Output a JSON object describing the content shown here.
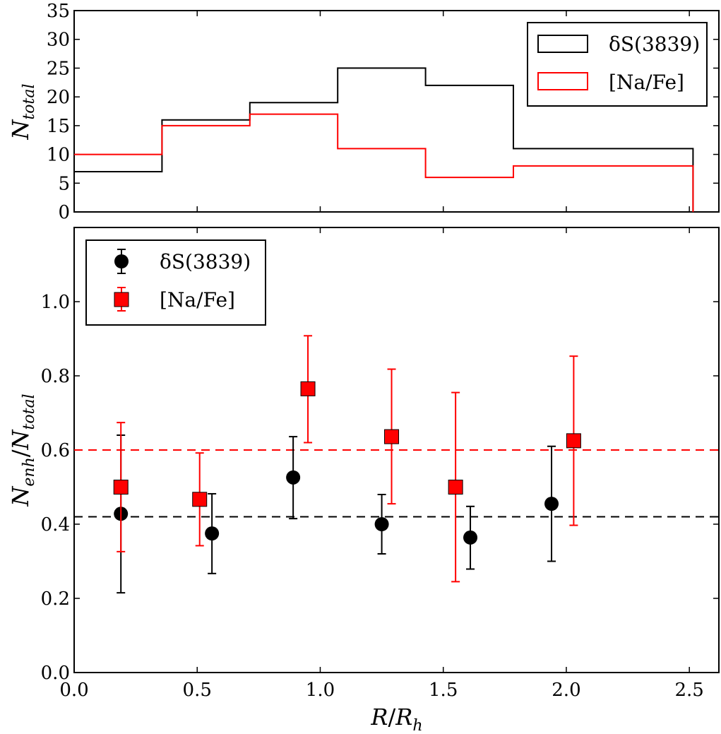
{
  "chart_data": [
    {
      "type": "step-histogram",
      "title": "",
      "ylabel": "N_total",
      "ylabel_parts": {
        "main": "N",
        "sub": "total"
      },
      "xlim": [
        0.0,
        2.62
      ],
      "ylim": [
        0,
        35
      ],
      "yticks": [
        0,
        5,
        10,
        15,
        20,
        25,
        30,
        35
      ],
      "bin_edges": [
        0.0,
        0.357,
        0.714,
        1.071,
        1.428,
        1.785,
        2.515
      ],
      "series": [
        {
          "name": "δS(3839)",
          "color": "#000000",
          "counts": [
            7,
            16,
            19,
            25,
            22,
            11
          ]
        },
        {
          "name": "[Na/Fe]",
          "color": "#ff0000",
          "counts": [
            10,
            15,
            17,
            11,
            6,
            8
          ]
        }
      ],
      "legend": {
        "placement": "top-right",
        "entries": [
          {
            "label": "δS(3839)",
            "color": "#000000"
          },
          {
            "label": "[Na/Fe]",
            "color": "#ff0000"
          }
        ]
      }
    },
    {
      "type": "scatter-errorbar",
      "title": "",
      "xlabel": "R/R_h",
      "xlabel_parts": {
        "main": "R",
        "slash": "/",
        "main2": "R",
        "sub": "h"
      },
      "ylabel": "N_enh/N_total",
      "ylabel_parts": {
        "main": "N",
        "sub1": "enh",
        "slash": "/",
        "main2": "N",
        "sub2": "total"
      },
      "xlim": [
        0.0,
        2.62
      ],
      "ylim": [
        0.0,
        1.2
      ],
      "xticks": [
        "0.0",
        "0.5",
        "1.0",
        "1.5",
        "2.0",
        "2.5"
      ],
      "yticks": [
        "0.0",
        "0.2",
        "0.4",
        "0.6",
        "0.8",
        "1.0"
      ],
      "series": [
        {
          "name": "δS(3839)",
          "marker": "circle",
          "color": "#000000",
          "points": [
            {
              "x": 0.19,
              "y": 0.428,
              "yerr_low": 0.215,
              "yerr_high": 0.64
            },
            {
              "x": 0.56,
              "y": 0.375,
              "yerr_low": 0.267,
              "yerr_high": 0.482
            },
            {
              "x": 0.89,
              "y": 0.526,
              "yerr_low": 0.415,
              "yerr_high": 0.636
            },
            {
              "x": 1.25,
              "y": 0.4,
              "yerr_low": 0.32,
              "yerr_high": 0.48
            },
            {
              "x": 1.61,
              "y": 0.364,
              "yerr_low": 0.279,
              "yerr_high": 0.448
            },
            {
              "x": 1.94,
              "y": 0.455,
              "yerr_low": 0.3,
              "yerr_high": 0.61
            }
          ]
        },
        {
          "name": "[Na/Fe]",
          "marker": "square",
          "color": "#ff0000",
          "points": [
            {
              "x": 0.19,
              "y": 0.5,
              "yerr_low": 0.326,
              "yerr_high": 0.674
            },
            {
              "x": 0.51,
              "y": 0.467,
              "yerr_low": 0.342,
              "yerr_high": 0.592
            },
            {
              "x": 0.95,
              "y": 0.765,
              "yerr_low": 0.62,
              "yerr_high": 0.908
            },
            {
              "x": 1.29,
              "y": 0.636,
              "yerr_low": 0.455,
              "yerr_high": 0.818
            },
            {
              "x": 1.55,
              "y": 0.5,
              "yerr_low": 0.245,
              "yerr_high": 0.755
            },
            {
              "x": 2.03,
              "y": 0.625,
              "yerr_low": 0.397,
              "yerr_high": 0.853
            }
          ]
        }
      ],
      "reference_lines": [
        {
          "y": 0.6,
          "color": "#ff0000",
          "style": "dashed"
        },
        {
          "y": 0.42,
          "color": "#000000",
          "style": "dashed"
        }
      ],
      "legend": {
        "placement": "top-left",
        "entries": [
          {
            "label": "δS(3839)",
            "marker": "circle",
            "color": "#000000"
          },
          {
            "label": "[Na/Fe]",
            "marker": "square",
            "color": "#ff0000"
          }
        ]
      }
    }
  ]
}
